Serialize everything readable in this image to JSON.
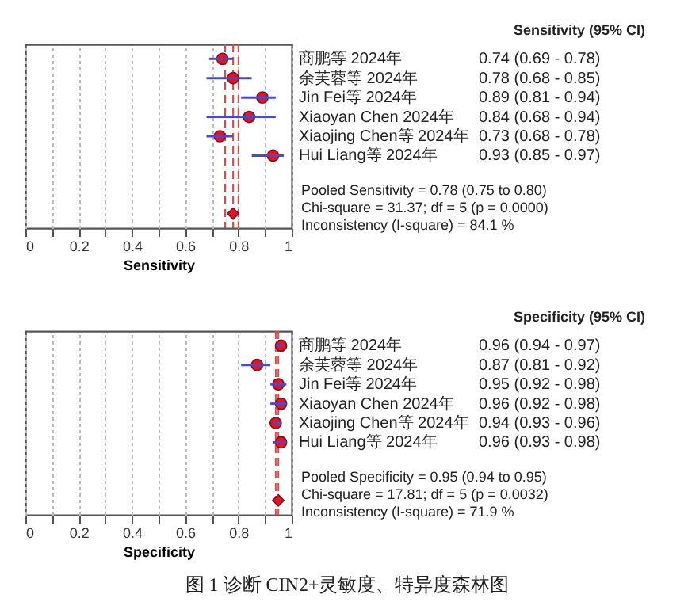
{
  "chart_data": [
    {
      "type": "scatter",
      "orientation": "horizontal",
      "xlabel": "Sensitivity",
      "categories": [
        "商鹏等 2024年",
        "余芙蓉等 2024年",
        "Jin Fei等 2024年",
        "Xiaoyan Chen 2024年",
        "Xiaojing Chen等 2024年",
        "Hui Liang等 2024年",
        null,
        null,
        null
      ],
      "series": [
        {
          "color": "#e8141c",
          "marker": "circle",
          "values": [
            0.74,
            0.78,
            0.89,
            0.84,
            0.73,
            0.93,
            null,
            null,
            null
          ],
          "errors": [
            [
              0.69,
              0.78
            ],
            [
              0.68,
              0.85
            ],
            [
              0.81,
              0.94
            ],
            [
              0.68,
              0.94
            ],
            [
              0.68,
              0.78
            ],
            [
              0.85,
              0.97
            ],
            null,
            null,
            null
          ],
          "value_labels": [
            "0.74   (0.69 - 0.78)",
            "0.78   (0.68 - 0.85)",
            "0.89   (0.81 - 0.94)",
            "0.84   (0.68 - 0.94)",
            "0.73   (0.68 - 0.78)",
            "0.93   (0.85 - 0.97)",
            null,
            null,
            null
          ]
        },
        {
          "color": "#e8141c",
          "marker": "diamond",
          "values": [
            null,
            null,
            null,
            null,
            null,
            null,
            null,
            null,
            0.78
          ]
        }
      ],
      "xlim": [
        0,
        1
      ],
      "xticks": [
        0,
        {
          "value": 0.1,
          "label": null
        },
        0.2,
        {
          "value": 0.3,
          "label": null
        },
        0.4,
        {
          "value": 0.5,
          "label": null
        },
        0.6,
        {
          "value": 0.7,
          "label": null
        },
        0.8,
        {
          "value": 0.9,
          "label": null
        },
        1
      ],
      "grid": "x",
      "ref_lines": [
        {
          "axis": "x",
          "value": 0.78,
          "color": "#f04040",
          "line_style": "dashed"
        },
        {
          "axis": "x",
          "value": 0.75,
          "color": "#f04040",
          "line_style": "dashed"
        },
        {
          "axis": "x",
          "value": 0.8,
          "color": "#f04040",
          "line_style": "dashed"
        }
      ],
      "annotations": [
        "Sensitivity (95% CI)",
        "Pooled Sensitivity = 0.78 (0.75 to 0.80)",
        "Chi-square = 31.37; df =  5 (p = 0.0000)",
        "Inconsistency (I-square) = 84.1 %"
      ]
    },
    {
      "type": "scatter",
      "orientation": "horizontal",
      "xlabel": "Specificity",
      "categories": [
        "商鹏等 2024年",
        "余芙蓉等 2024年",
        "Jin Fei等 2024年",
        "Xiaoyan Chen 2024年",
        "Xiaojing Chen等 2024年",
        "Hui Liang等 2024年",
        null,
        null,
        null
      ],
      "series": [
        {
          "color": "#e8141c",
          "marker": "circle",
          "values": [
            0.96,
            0.87,
            0.95,
            0.96,
            0.94,
            0.96,
            null,
            null,
            null
          ],
          "errors": [
            [
              0.94,
              0.97
            ],
            [
              0.81,
              0.92
            ],
            [
              0.92,
              0.98
            ],
            [
              0.92,
              0.98
            ],
            [
              0.93,
              0.96
            ],
            [
              0.93,
              0.98
            ],
            null,
            null,
            null
          ],
          "value_labels": [
            "0.96   (0.94 - 0.97)",
            "0.87   (0.81 - 0.92)",
            "0.95   (0.92 - 0.98)",
            "0.96   (0.92 - 0.98)",
            "0.94   (0.93 - 0.96)",
            "0.96   (0.93 - 0.98)",
            null,
            null,
            null
          ]
        },
        {
          "color": "#e8141c",
          "marker": "diamond",
          "values": [
            null,
            null,
            null,
            null,
            null,
            null,
            null,
            null,
            0.95
          ]
        }
      ],
      "xlim": [
        0,
        1
      ],
      "xticks": [
        0,
        {
          "value": 0.1,
          "label": null
        },
        0.2,
        {
          "value": 0.3,
          "label": null
        },
        0.4,
        {
          "value": 0.5,
          "label": null
        },
        0.6,
        {
          "value": 0.7,
          "label": null
        },
        0.8,
        {
          "value": 0.9,
          "label": null
        },
        1
      ],
      "grid": "x",
      "ref_lines": [
        {
          "axis": "x",
          "value": 0.95,
          "color": "#f04040",
          "line_style": "dashed"
        },
        {
          "axis": "x",
          "value": 0.94,
          "color": "#f04040",
          "line_style": "dashed"
        }
      ],
      "annotations": [
        "Specificity (95% CI)",
        "Pooled Specificity = 0.95 (0.94 to 0.95)",
        "Chi-square = 17.81; df =  5 (p = 0.0032)",
        "Inconsistency (I-square) = 71.9 %",
        "图 1    诊断 CIN2+灵敏度、特异度森林图"
      ]
    }
  ]
}
